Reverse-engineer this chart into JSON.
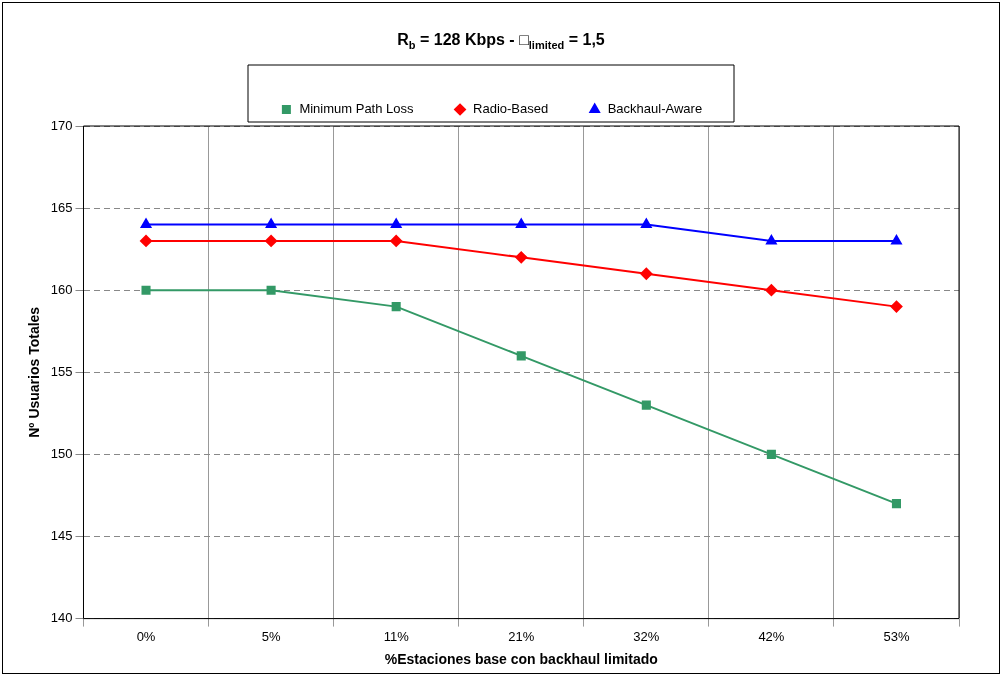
{
  "chart_data": {
    "type": "line",
    "title": "R$_{b}$ = 128 Kbps - □$_{limited}$ = 1,5",
    "xlabel": "%Estaciones base con backhaul limitado",
    "ylabel": "Nº Usuarios Totales",
    "categories": [
      "0%",
      "5%",
      "11%",
      "21%",
      "32%",
      "42%",
      "53%"
    ],
    "series": [
      {
        "name": "Minimum Path Loss",
        "color": "#339966",
        "marker": "square",
        "values": [
          160,
          160,
          159,
          156,
          153,
          150,
          147
        ]
      },
      {
        "name": "Radio-Based",
        "color": "#ff0000",
        "marker": "diamond",
        "values": [
          163,
          163,
          163,
          162,
          161,
          160,
          159
        ]
      },
      {
        "name": "Backhaul-Aware",
        "color": "#0000ff",
        "marker": "triangle",
        "values": [
          164,
          164,
          164,
          164,
          164,
          163,
          163
        ]
      }
    ],
    "ylim": [
      140,
      170
    ],
    "yticks": [
      140,
      145,
      150,
      155,
      160,
      165,
      170
    ],
    "grid": true,
    "legend": "top",
    "line_style": "solid"
  }
}
